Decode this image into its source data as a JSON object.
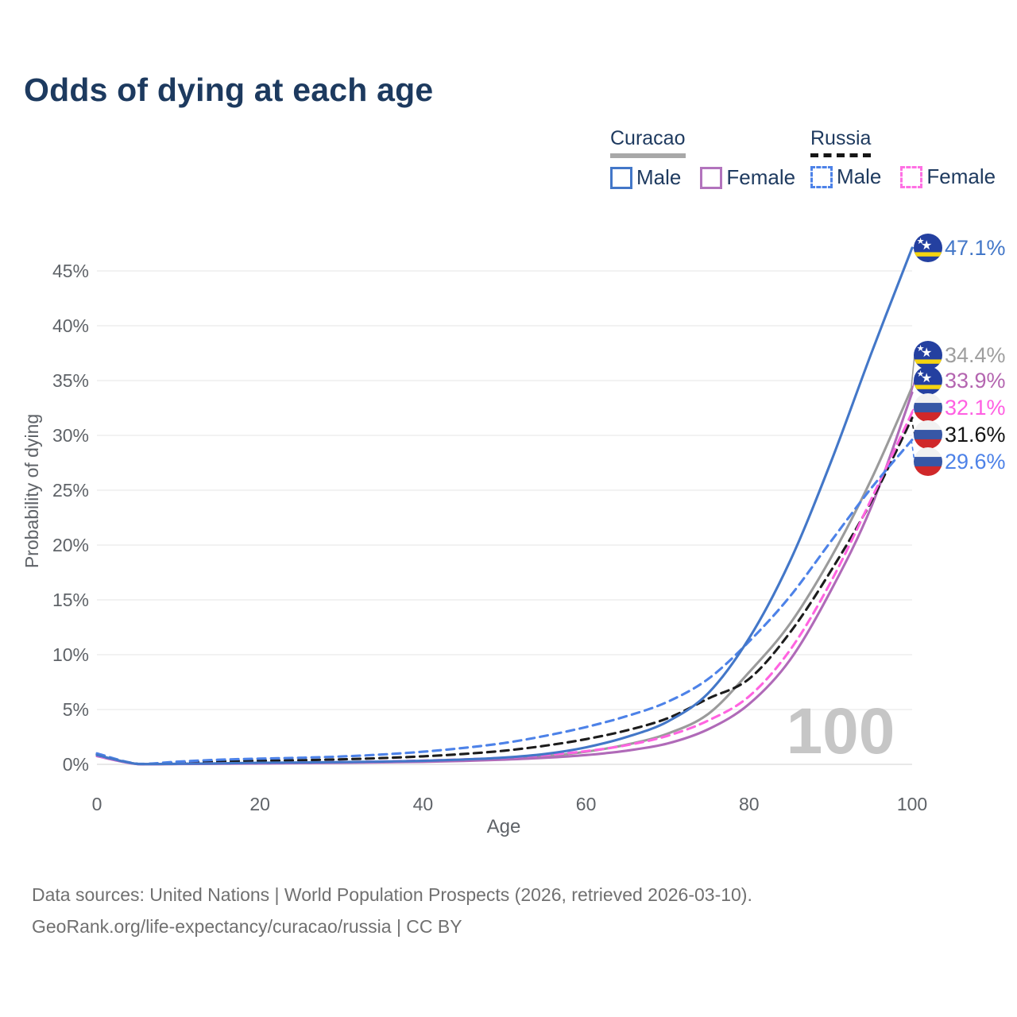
{
  "page": {
    "title": "Odds of dying at each age"
  },
  "legend": {
    "groups": [
      {
        "label": "Curacao",
        "line_style": "solid",
        "underline_color": "#a8a8a8"
      },
      {
        "label": "Russia",
        "line_style": "dashed",
        "underline_color": "#161616"
      }
    ],
    "items": [
      {
        "label": "Male",
        "country": "Curacao",
        "color": "#4377c8",
        "dashed": false
      },
      {
        "label": "Female",
        "country": "Curacao",
        "color": "#b273bd",
        "dashed": false
      },
      {
        "label": "Male",
        "country": "Russia",
        "color": "#4d82e8",
        "dashed": true
      },
      {
        "label": "Female",
        "country": "Russia",
        "color": "#ff70e4",
        "dashed": true
      }
    ]
  },
  "watermark": "100",
  "footer": {
    "line1": "Data sources: United Nations | World Population Prospects (2026, retrieved 2026-03-10).",
    "line2": "GeoRank.org/life-expectancy/curacao/russia | CC BY"
  },
  "flag_colors": {
    "curacao": {
      "field": "#2440a0",
      "stripe": "#f5d410",
      "stars": "#ffffff"
    },
    "russia": {
      "white": "#f1f1f1",
      "blue": "#3757a6",
      "red": "#d0282a"
    }
  },
  "chart_data": {
    "type": "line",
    "title": "Odds of dying at each age",
    "xlabel": "Age",
    "ylabel": "Probability of dying",
    "grid": "horizontal",
    "legend_position": "top-right",
    "xlim": [
      0,
      100
    ],
    "ylim_percent": [
      0,
      47.5
    ],
    "x_ticks": [
      0,
      20,
      40,
      60,
      80,
      100
    ],
    "y_tick_values": [
      0,
      5,
      10,
      15,
      20,
      25,
      30,
      35,
      40,
      45
    ],
    "y_tick_labels": [
      "0%",
      "5%",
      "10%",
      "15%",
      "20%",
      "25%",
      "30%",
      "35%",
      "40%",
      "45%"
    ],
    "frame_age_label": "100",
    "x": [
      0,
      5,
      10,
      15,
      20,
      25,
      30,
      35,
      40,
      45,
      50,
      55,
      60,
      65,
      70,
      75,
      80,
      85,
      90,
      95,
      100
    ],
    "series": [
      {
        "name": "Curacao Total",
        "country": "Curacao",
        "sex": "Total",
        "color": "#9b9b9b",
        "label_color": "#9e9e9e",
        "dashed": false,
        "end_label": "34.4%",
        "end_value": 34.4,
        "flag": "curacao",
        "values": [
          0.8,
          0.03,
          0.04,
          0.07,
          0.11,
          0.14,
          0.17,
          0.21,
          0.27,
          0.37,
          0.52,
          0.75,
          1.15,
          1.8,
          2.8,
          4.6,
          8.4,
          12.8,
          18.8,
          26.0,
          34.4
        ]
      },
      {
        "name": "Curacao Female",
        "country": "Curacao",
        "sex": "Female",
        "color": "#b06ab8",
        "label_color": "#b465b0",
        "dashed": false,
        "end_label": "33.9%",
        "end_value": 33.9,
        "flag": "curacao",
        "values": [
          0.75,
          0.02,
          0.03,
          0.05,
          0.08,
          0.11,
          0.14,
          0.18,
          0.23,
          0.31,
          0.43,
          0.6,
          0.85,
          1.25,
          1.9,
          3.2,
          5.5,
          9.5,
          15.8,
          23.5,
          33.9
        ]
      },
      {
        "name": "Russia Total",
        "country": "Russia",
        "sex": "Total",
        "color": "#1c1c1c",
        "label_color": "#141414",
        "dashed": true,
        "end_label": "31.6%",
        "end_value": 31.6,
        "flag": "russia",
        "values": [
          0.9,
          0.04,
          0.15,
          0.26,
          0.33,
          0.38,
          0.46,
          0.57,
          0.73,
          0.95,
          1.25,
          1.7,
          2.3,
          3.1,
          4.2,
          6.0,
          7.8,
          12.0,
          17.6,
          24.0,
          31.6
        ]
      },
      {
        "name": "Russia Female",
        "country": "Russia",
        "sex": "Female",
        "color": "#ff63e0",
        "label_color": "#ff5fe2",
        "dashed": true,
        "end_label": "32.1%",
        "end_value": 32.1,
        "flag": "russia",
        "values": [
          0.8,
          0.03,
          0.06,
          0.09,
          0.12,
          0.16,
          0.2,
          0.26,
          0.34,
          0.45,
          0.6,
          0.85,
          1.2,
          1.75,
          2.6,
          4.0,
          6.2,
          10.4,
          16.6,
          24.2,
          32.1
        ]
      },
      {
        "name": "Russia Male",
        "country": "Russia",
        "sex": "Male",
        "color": "#4d82e8",
        "label_color": "#4d82e8",
        "dashed": true,
        "end_label": "29.6%",
        "end_value": 29.6,
        "flag": "russia",
        "values": [
          1.0,
          0.05,
          0.25,
          0.42,
          0.52,
          0.6,
          0.72,
          0.9,
          1.15,
          1.5,
          1.95,
          2.6,
          3.4,
          4.4,
          5.7,
          7.8,
          11.2,
          15.3,
          20.3,
          25.2,
          29.6
        ]
      },
      {
        "name": "Curacao Male",
        "country": "Curacao",
        "sex": "Male",
        "color": "#4377c8",
        "label_color": "#4377c8",
        "dashed": false,
        "end_label": "47.1%",
        "end_value": 47.1,
        "flag": "curacao",
        "values": [
          0.85,
          0.03,
          0.05,
          0.09,
          0.14,
          0.17,
          0.2,
          0.25,
          0.32,
          0.44,
          0.62,
          0.95,
          1.55,
          2.5,
          3.9,
          6.5,
          11.5,
          18.5,
          27.5,
          37.5,
          47.1
        ]
      }
    ]
  }
}
